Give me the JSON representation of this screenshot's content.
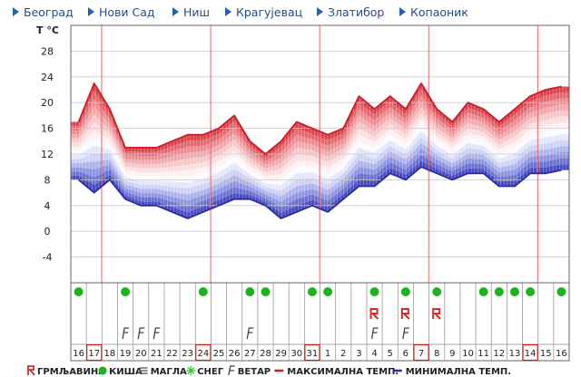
{
  "nav": {
    "items": [
      {
        "label": "Београд"
      },
      {
        "label": "Нови Сад"
      },
      {
        "label": "Ниш"
      },
      {
        "label": "Крагујевац"
      },
      {
        "label": "Златибор"
      },
      {
        "label": "Копаоник"
      }
    ]
  },
  "colors": {
    "max_line": "#c8202b",
    "min_line": "#2a2aa8",
    "grid_red": "#e8606a",
    "rain": "#1bb51b",
    "storm": "#d42a2a",
    "wind": "#444444"
  },
  "chart_data": {
    "type": "line",
    "ylabel": "T °C",
    "yticks": [
      -4,
      0,
      4,
      8,
      12,
      16,
      20,
      24,
      28
    ],
    "ylim": [
      -8,
      32
    ],
    "x": [
      "16",
      "17",
      "18",
      "19",
      "20",
      "21",
      "22",
      "23",
      "24",
      "25",
      "26",
      "27",
      "28",
      "29",
      "30",
      "31",
      "1",
      "2",
      "3",
      "4",
      "5",
      "6",
      "7",
      "8",
      "9",
      "10",
      "11",
      "12",
      "13",
      "14",
      "15",
      "16"
    ],
    "highlighted_dates": [
      "17",
      "24",
      "31",
      "7",
      "14"
    ],
    "series": [
      {
        "name": "МАКСИМАЛНА ТЕМП.",
        "values": [
          17,
          23,
          19,
          13,
          13,
          13,
          14,
          15,
          15,
          16,
          18,
          14,
          12,
          14,
          17,
          16,
          15,
          16,
          21,
          19,
          21,
          19,
          23,
          19,
          17,
          20,
          19,
          17,
          19,
          21,
          22,
          22.5
        ]
      },
      {
        "name": "МИНИМАЛНА ТЕМП.",
        "values": [
          8,
          6,
          8,
          5,
          4,
          4,
          3,
          2,
          3,
          4,
          5,
          5,
          4,
          2,
          3,
          4,
          3,
          5,
          7,
          7,
          9,
          8,
          10,
          9,
          8,
          9,
          9,
          7,
          7,
          9,
          9,
          9.5
        ]
      }
    ],
    "weather_rows": {
      "rain": [
        "16",
        "19",
        "24",
        "27",
        "28",
        "31",
        "1",
        "4",
        "6",
        "8",
        "11",
        "12",
        "13",
        "14",
        "16"
      ],
      "wind": [
        "19",
        "20",
        "21",
        "27",
        "4",
        "6"
      ],
      "storm": [
        "4",
        "6",
        "8"
      ]
    }
  },
  "legend": {
    "storm": "ГРМЉАВИНА",
    "rain": "КИША",
    "fog": "МАГЛА",
    "snow": "СНЕГ",
    "wind": "ВЕТАР",
    "max": "МАКСИМАЛНА ТЕМП.",
    "min": "МИНИМАЛНА ТЕМП."
  }
}
